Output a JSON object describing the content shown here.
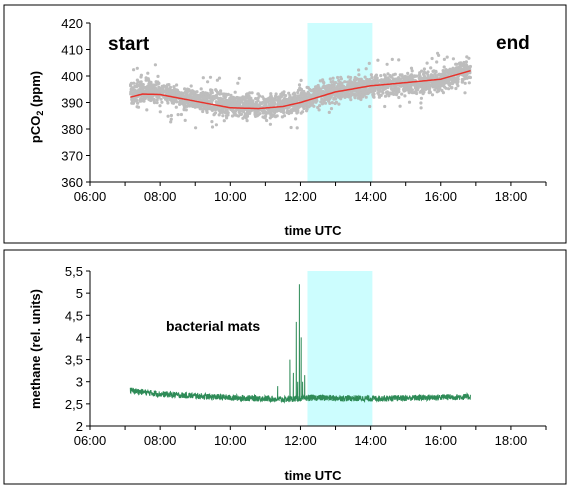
{
  "chart_data": [
    {
      "type": "scatter",
      "xlabel": "time UTC",
      "ylabel_main": "pCO",
      "ylabel_sub": "2",
      "ylabel_unit": " (ppm)",
      "xticks": [
        "06:00",
        "08:00",
        "10:00",
        "12:00",
        "14:00",
        "16:00",
        "18:00"
      ],
      "xlim_hours": [
        6,
        19
      ],
      "ylim": [
        360,
        420
      ],
      "yticks": [
        "360",
        "370",
        "380",
        "390",
        "400",
        "410",
        "420"
      ],
      "highlight_band_hours": [
        12.2,
        14.05
      ],
      "highlight_color": "#ccfdfe",
      "annotations": {
        "start": "start",
        "end": "end"
      },
      "series": [
        {
          "role": "measurements",
          "color": "#bdbdbd",
          "x_range_hours": [
            7.15,
            16.85
          ],
          "trend": [
            [
              7.15,
              393.8
            ],
            [
              8,
              394
            ],
            [
              9,
              391
            ],
            [
              10,
              389
            ],
            [
              11,
              388.5
            ],
            [
              12,
              390.5
            ],
            [
              13,
              394.5
            ],
            [
              14,
              396
            ],
            [
              15,
              397
            ],
            [
              16,
              398.5
            ],
            [
              16.85,
              402.5
            ]
          ],
          "scatter_halfwidth_ppm": 6
        },
        {
          "role": "fit",
          "color": "#e8322b",
          "points": [
            [
              7.15,
              392
            ],
            [
              7.5,
              393.2
            ],
            [
              8,
              393
            ],
            [
              9,
              390.5
            ],
            [
              10,
              388
            ],
            [
              10.8,
              387.7
            ],
            [
              11.5,
              388.5
            ],
            [
              12,
              390
            ],
            [
              12.5,
              392
            ],
            [
              13,
              394
            ],
            [
              14,
              396.3
            ],
            [
              15,
              397.5
            ],
            [
              16,
              398.8
            ],
            [
              16.85,
              402
            ]
          ]
        }
      ]
    },
    {
      "type": "line",
      "xlabel": "time UTC",
      "ylabel": "methane (rel. units)",
      "xticks": [
        "06:00",
        "08:00",
        "10:00",
        "12:00",
        "14:00",
        "16:00",
        "18:00"
      ],
      "xlim_hours": [
        6,
        19
      ],
      "ylim": [
        2,
        5.5
      ],
      "yticks": [
        "2",
        "2,5",
        "3",
        "3,5",
        "4",
        "4,5",
        "5",
        "5,5"
      ],
      "highlight_band_hours": [
        12.2,
        14.05
      ],
      "highlight_color": "#ccfdfe",
      "annotation": "bacterial mats",
      "series": [
        {
          "color": "#2e8b57",
          "baseline": [
            [
              7.15,
              2.8
            ],
            [
              8,
              2.72
            ],
            [
              9,
              2.68
            ],
            [
              10,
              2.64
            ],
            [
              11,
              2.62
            ],
            [
              11.5,
              2.6
            ],
            [
              12.4,
              2.64
            ],
            [
              13,
              2.63
            ],
            [
              14,
              2.62
            ],
            [
              15,
              2.63
            ],
            [
              16,
              2.65
            ],
            [
              16.85,
              2.66
            ]
          ],
          "spikes": [
            [
              11.35,
              2.9
            ],
            [
              11.45,
              2.55
            ],
            [
              11.7,
              3.5
            ],
            [
              11.8,
              3.2
            ],
            [
              11.88,
              4.35
            ],
            [
              11.92,
              3.0
            ],
            [
              11.97,
              5.2
            ],
            [
              12.02,
              4.0
            ],
            [
              12.06,
              3.0
            ],
            [
              12.12,
              3.15
            ]
          ]
        }
      ]
    }
  ]
}
